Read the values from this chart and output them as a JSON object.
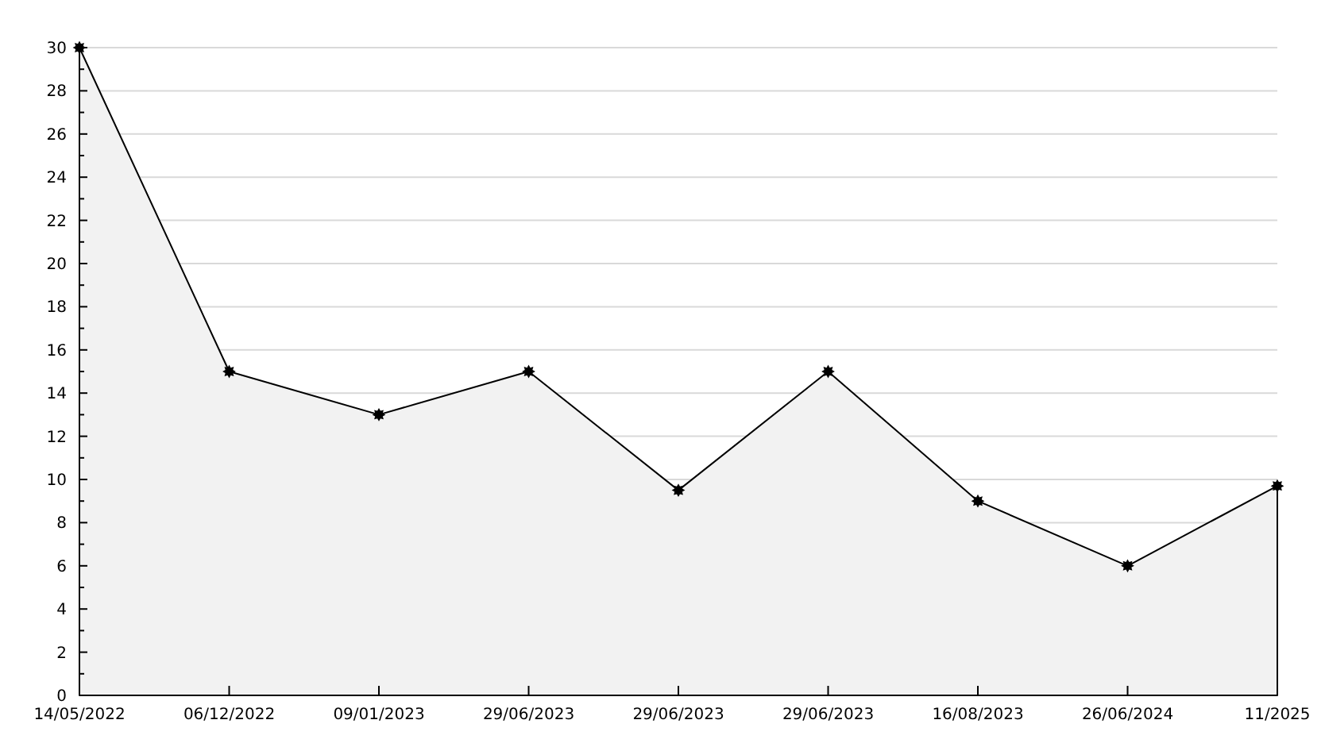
{
  "chart_data": {
    "type": "area",
    "categories": [
      "14/05/2022",
      "06/12/2022",
      "09/01/2023",
      "29/06/2023",
      "29/06/2023",
      "29/06/2023",
      "16/08/2023",
      "26/06/2024",
      "11/2025"
    ],
    "series": [
      {
        "color": "#f2f2f2",
        "values": [
          30,
          15,
          13,
          15,
          9.5,
          15,
          9,
          6,
          9.7
        ]
      }
    ],
    "ylim": [
      0,
      30
    ],
    "yticks": [
      0,
      {
        "value": 1,
        "label": null
      },
      2,
      {
        "value": 3,
        "label": null
      },
      4,
      {
        "value": 5,
        "label": null
      },
      6,
      {
        "value": 7,
        "label": null
      },
      8,
      {
        "value": 9,
        "label": null
      },
      10,
      {
        "value": 11,
        "label": null
      },
      12,
      {
        "value": 13,
        "label": null
      },
      14,
      {
        "value": 15,
        "label": null
      },
      16,
      {
        "value": 17,
        "label": null
      },
      18,
      {
        "value": 19,
        "label": null
      },
      20,
      {
        "value": 21,
        "label": null
      },
      22,
      {
        "value": 23,
        "label": null
      },
      24,
      {
        "value": 25,
        "label": null
      },
      26,
      {
        "value": 27,
        "label": null
      },
      28,
      {
        "value": 29,
        "label": null
      },
      30
    ],
    "grid": "y",
    "marker": "star"
  }
}
